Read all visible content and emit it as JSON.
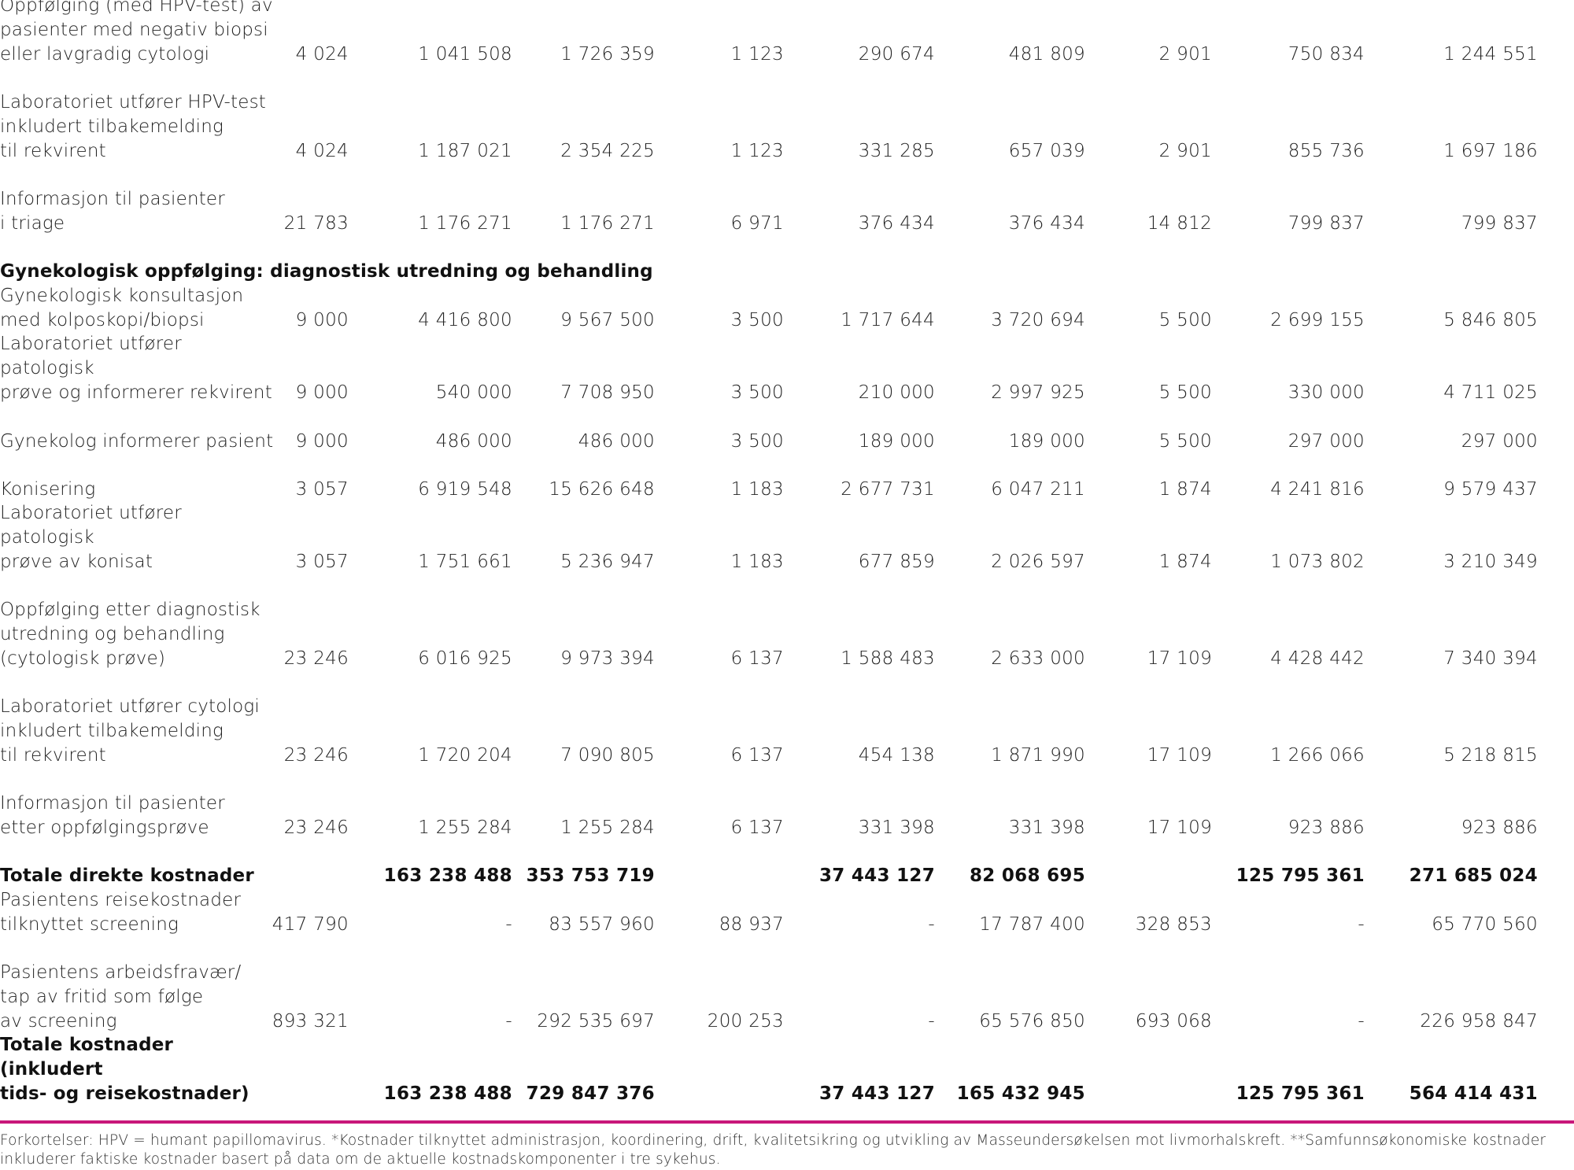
{
  "rows": [
    {
      "label": "Oppfølging (med HPV-test) av\npasienter med negativ biopsi\neller lavgradig cytologi",
      "values": [
        "4 024",
        "1 041 508",
        "1 726 359",
        "1 123",
        "290 674",
        "481 809",
        "2 901",
        "750 834",
        "1 244 551"
      ]
    },
    {
      "label": "Laboratoriet utfører HPV-test\ninkludert tilbakemelding\ntil rekvirent",
      "values": [
        "4 024",
        "1 187 021",
        "2 354 225",
        "1 123",
        "331 285",
        "657 039",
        "2 901",
        "855 736",
        "1 697 186"
      ]
    },
    {
      "label": "Informasjon til pasienter\ni triage",
      "values": [
        "21 783",
        "1 176 271",
        "1 176 271",
        "6 971",
        "376 434",
        "376 434",
        "14 812",
        "799 837",
        "799 837"
      ]
    },
    {
      "label": "Gynekologisk oppfølging: diagnostisk utredning og behandling"
    },
    {
      "label": "Gynekologisk konsultasjon\nmed kolposkopi/biopsi",
      "values": [
        "9 000",
        "4 416 800",
        "9 567 500",
        "3 500",
        "1 717 644",
        "3 720 694",
        "5 500",
        "2 699 155",
        "5 846 805"
      ]
    },
    {
      "label": "Laboratoriet utfører patologisk\nprøve og informerer rekvirent",
      "values": [
        "9 000",
        "540 000",
        "7 708 950",
        "3 500",
        "210 000",
        "2 997 925",
        "5 500",
        "330 000",
        "4 711 025"
      ]
    },
    {
      "label": "Gynekolog informerer pasient",
      "values": [
        "9 000",
        "486 000",
        "486 000",
        "3 500",
        "189 000",
        "189 000",
        "5 500",
        "297 000",
        "297 000"
      ]
    },
    {
      "label": "Konisering",
      "values": [
        "3 057",
        "6 919 548",
        "15 626 648",
        "1 183",
        "2 677 731",
        "6 047 211",
        "1 874",
        "4 241 816",
        "9 579 437"
      ]
    },
    {
      "label": "Laboratoriet utfører patologisk\nprøve av konisat",
      "values": [
        "3 057",
        "1 751 661",
        "5 236 947",
        "1 183",
        "677 859",
        "2 026 597",
        "1 874",
        "1 073 802",
        "3 210 349"
      ]
    },
    {
      "label": "Oppfølging etter diagnostisk\nutredning og behandling\n(cytologisk prøve)",
      "values": [
        "23 246",
        "6 016 925",
        "9 973 394",
        "6 137",
        "1 588 483",
        "2 633 000",
        "17 109",
        "4 428 442",
        "7 340 394"
      ]
    },
    {
      "label": "Laboratoriet  utfører cytologi\ninkludert tilbakemelding\ntil rekvirent",
      "values": [
        "23 246",
        "1 720 204",
        "7 090 805",
        "6 137",
        "454 138",
        "1 871 990",
        "17 109",
        "1 266 066",
        "5 218 815"
      ]
    },
    {
      "label": "Informasjon til pasienter\netter oppfølgingsprøve",
      "values": [
        "23 246",
        "1 255 284",
        "1 255 284",
        "6 137",
        "331 398",
        "331 398",
        "17 109",
        "923 886",
        "923 886"
      ]
    },
    {
      "label": "Totale direkte kostnader",
      "values": [
        "",
        "163 238 488",
        "353 753 719",
        "",
        "37 443 127",
        "82 068 695",
        "",
        "125 795 361",
        "271 685 024"
      ]
    },
    {
      "label": "Pasientens reisekostnader\ntilknyttet screening",
      "values": [
        "417 790",
        "-",
        "83 557 960",
        "88 937",
        "-",
        "17 787 400",
        "328 853",
        "-",
        "65 770 560"
      ]
    },
    {
      "label": "Pasientens arbeidsfravær/\ntap av fritid som følge\nav screening",
      "values": [
        "893 321",
        "-",
        "292 535 697",
        "200 253",
        "-",
        "65 576 850",
        "693 068",
        "-",
        "226 958 847"
      ]
    },
    {
      "label": "Totale kostnader (inkludert\ntids- og reisekostnader)",
      "values": [
        "",
        "163 238 488",
        "729 847 376",
        "",
        "37 443 127",
        "165 432 945",
        "",
        "125 795 361",
        "564 414 431"
      ]
    }
  ],
  "footnote": "Forkortelser: HPV = humant papillomavirus. *Kostnader tilknyttet administrasjon, koordinering, drift, kvalitetsikring og utvikling av Masseundersøkelsen mot livmorhalskreft.  **Samfunnsøkonomiske kostnader inkluderer faktiske kostnader basert på data om de aktuelle kostnadskomponenter i tre sykehus.",
  "colors": {
    "rule": "#c8177a",
    "text": "#222222"
  }
}
